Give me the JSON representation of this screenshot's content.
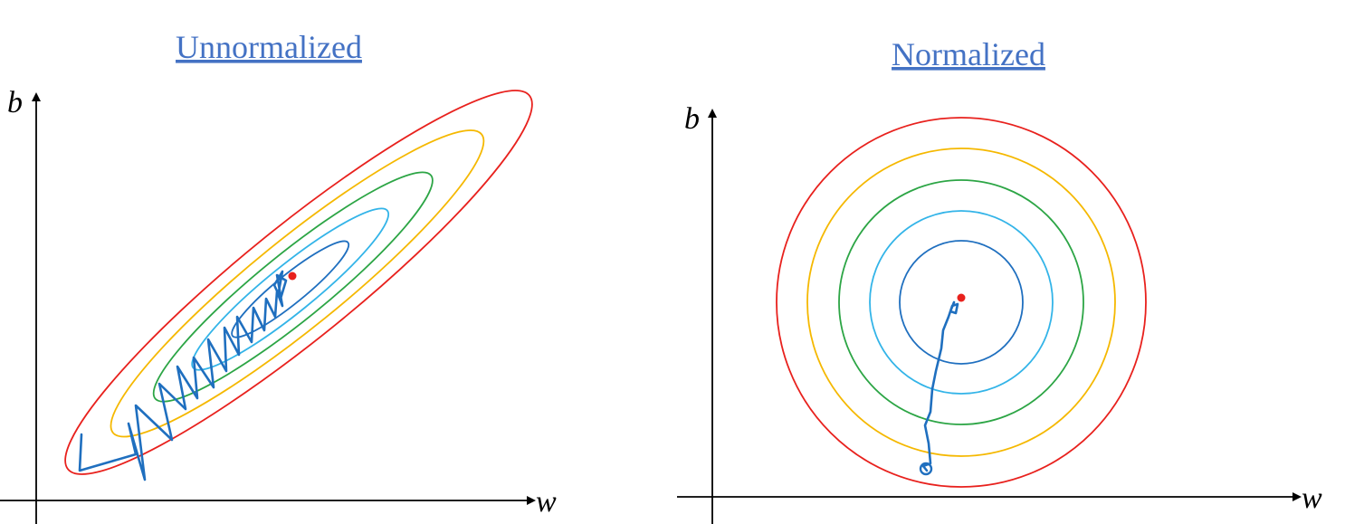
{
  "panels": [
    {
      "title": "Unnormalized",
      "y_axis_label": "b",
      "x_axis_label": "w"
    },
    {
      "title": "Normalized",
      "y_axis_label": "b",
      "x_axis_label": "w"
    }
  ]
}
